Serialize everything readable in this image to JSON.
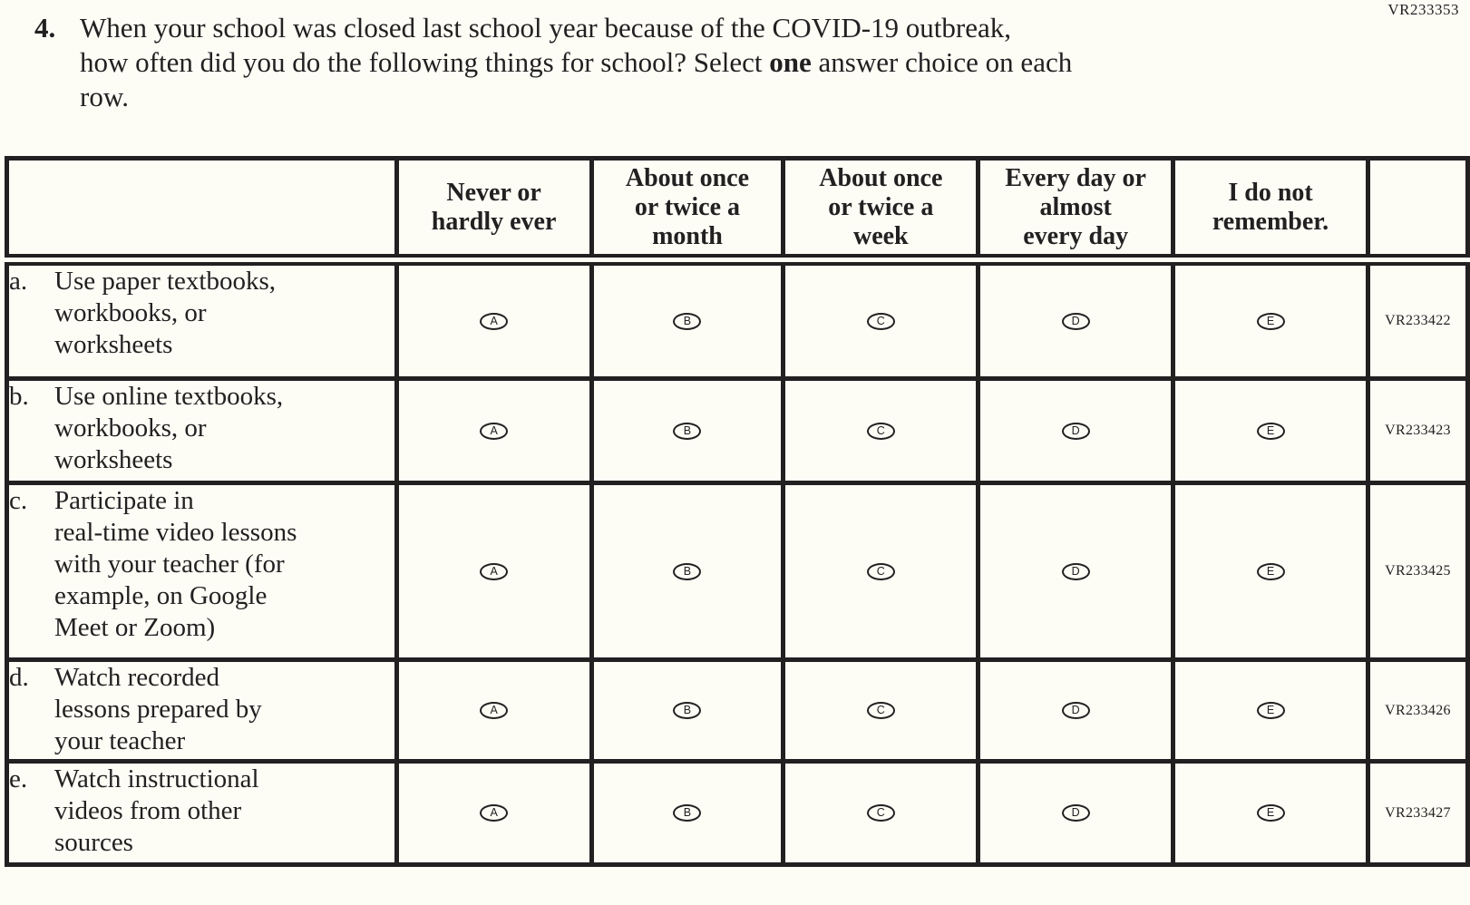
{
  "page": {
    "form_code_top": "VR233353",
    "colors": {
      "ink": "#232021",
      "paper": "#fdfdf6"
    }
  },
  "question": {
    "number": "4.",
    "line1": "When your school was closed last school year because of the COVID-19 outbreak,",
    "line2_pre": "how often did you do the following things for school? Select ",
    "line2_bold": "one",
    "line2_post": " answer choice on each",
    "line3": "row."
  },
  "table": {
    "columns": [
      "",
      "Never or\nhardly ever",
      "About once\nor twice a\nmonth",
      "About once\nor twice a\nweek",
      "Every day or\nalmost\nevery day",
      "I do not\nremember.",
      ""
    ],
    "options": [
      "A",
      "B",
      "C",
      "D",
      "E"
    ],
    "rows": [
      {
        "letter": "a.",
        "text": "Use paper textbooks,\nworkbooks, or\nworksheets",
        "code": "VR233422"
      },
      {
        "letter": "b.",
        "text": "Use online textbooks,\nworkbooks, or\nworksheets",
        "code": "VR233423"
      },
      {
        "letter": "c.",
        "text": "Participate in\nreal-time video lessons\nwith your teacher (for\nexample, on Google\nMeet or Zoom)",
        "code": "VR233425"
      },
      {
        "letter": "d.",
        "text": "Watch recorded\nlessons prepared by\nyour teacher",
        "code": "VR233426"
      },
      {
        "letter": "e.",
        "text": "Watch instructional\nvideos from other\nsources",
        "code": "VR233427"
      }
    ]
  }
}
